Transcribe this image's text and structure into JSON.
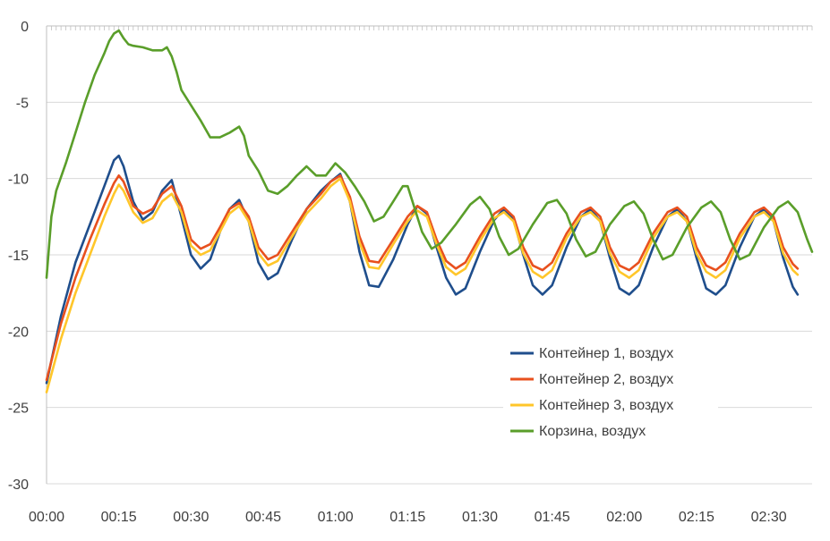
{
  "chart_data": {
    "type": "line",
    "title": "",
    "xlabel": "",
    "ylabel": "",
    "x_ticks": [
      "00:00",
      "00:15",
      "00:30",
      "00:45",
      "01:00",
      "01:15",
      "01:30",
      "01:45",
      "02:00",
      "02:15",
      "02:30"
    ],
    "y_ticks": [
      0,
      -5,
      -10,
      -15,
      -20,
      -25,
      -30
    ],
    "ylim": [
      -30,
      0
    ],
    "xlim_minutes": [
      0,
      159
    ],
    "grid": "horizontal",
    "legend_position": "bottom-right (inside plot)",
    "series": [
      {
        "name": "Контейнер 1, воздух",
        "color": "#1f4e8c",
        "points": [
          [
            0,
            -23.4
          ],
          [
            3,
            -19
          ],
          [
            6,
            -15.5
          ],
          [
            9,
            -13
          ],
          [
            12,
            -10.5
          ],
          [
            14,
            -8.8
          ],
          [
            15,
            -8.5
          ],
          [
            16,
            -9.2
          ],
          [
            18,
            -11.5
          ],
          [
            20,
            -12.7
          ],
          [
            22,
            -12.2
          ],
          [
            24,
            -10.8
          ],
          [
            26,
            -10.1
          ],
          [
            28,
            -12.5
          ],
          [
            30,
            -15
          ],
          [
            32,
            -15.9
          ],
          [
            34,
            -15.3
          ],
          [
            36,
            -13.5
          ],
          [
            38,
            -12
          ],
          [
            40,
            -11.4
          ],
          [
            42,
            -12.8
          ],
          [
            44,
            -15.5
          ],
          [
            46,
            -16.6
          ],
          [
            48,
            -16.2
          ],
          [
            51,
            -14
          ],
          [
            54,
            -12
          ],
          [
            57,
            -10.8
          ],
          [
            59,
            -10.2
          ],
          [
            61,
            -9.7
          ],
          [
            63,
            -11.5
          ],
          [
            65,
            -14.8
          ],
          [
            67,
            -17
          ],
          [
            69,
            -17.1
          ],
          [
            72,
            -15.3
          ],
          [
            75,
            -13
          ],
          [
            77,
            -11.8
          ],
          [
            79,
            -12.3
          ],
          [
            81,
            -14.5
          ],
          [
            83,
            -16.5
          ],
          [
            85,
            -17.6
          ],
          [
            87,
            -17.2
          ],
          [
            90,
            -14.8
          ],
          [
            93,
            -12.7
          ],
          [
            95,
            -12
          ],
          [
            97,
            -12.7
          ],
          [
            99,
            -15
          ],
          [
            101,
            -17
          ],
          [
            103,
            -17.6
          ],
          [
            105,
            -17
          ],
          [
            108,
            -14.5
          ],
          [
            111,
            -12.5
          ],
          [
            113,
            -12
          ],
          [
            115,
            -12.8
          ],
          [
            117,
            -15.2
          ],
          [
            119,
            -17.2
          ],
          [
            121,
            -17.6
          ],
          [
            123,
            -17
          ],
          [
            126,
            -14.5
          ],
          [
            129,
            -12.5
          ],
          [
            131,
            -12
          ],
          [
            133,
            -12.8
          ],
          [
            135,
            -15.2
          ],
          [
            137,
            -17.2
          ],
          [
            139,
            -17.6
          ],
          [
            141,
            -17
          ],
          [
            144,
            -14.5
          ],
          [
            147,
            -12.5
          ],
          [
            149,
            -12
          ],
          [
            151,
            -12.8
          ],
          [
            153,
            -15.2
          ],
          [
            155,
            -17.1
          ],
          [
            156,
            -17.6
          ]
        ]
      },
      {
        "name": "Контейнер 2, воздух",
        "color": "#e8501e",
        "points": [
          [
            0,
            -23.2
          ],
          [
            3,
            -19.5
          ],
          [
            6,
            -16.5
          ],
          [
            9,
            -14
          ],
          [
            12,
            -11.7
          ],
          [
            14,
            -10.3
          ],
          [
            15,
            -9.8
          ],
          [
            16,
            -10.2
          ],
          [
            18,
            -11.8
          ],
          [
            20,
            -12.3
          ],
          [
            22,
            -12
          ],
          [
            24,
            -11
          ],
          [
            26,
            -10.5
          ],
          [
            28,
            -11.8
          ],
          [
            30,
            -14
          ],
          [
            32,
            -14.6
          ],
          [
            34,
            -14.3
          ],
          [
            36,
            -13.2
          ],
          [
            38,
            -12
          ],
          [
            40,
            -11.6
          ],
          [
            42,
            -12.5
          ],
          [
            44,
            -14.5
          ],
          [
            46,
            -15.3
          ],
          [
            48,
            -15
          ],
          [
            51,
            -13.5
          ],
          [
            54,
            -12
          ],
          [
            57,
            -11
          ],
          [
            59,
            -10.2
          ],
          [
            61,
            -9.8
          ],
          [
            63,
            -11.2
          ],
          [
            65,
            -13.8
          ],
          [
            67,
            -15.4
          ],
          [
            69,
            -15.5
          ],
          [
            72,
            -14
          ],
          [
            75,
            -12.5
          ],
          [
            77,
            -11.8
          ],
          [
            79,
            -12.2
          ],
          [
            81,
            -14
          ],
          [
            83,
            -15.4
          ],
          [
            85,
            -15.9
          ],
          [
            87,
            -15.5
          ],
          [
            90,
            -13.8
          ],
          [
            93,
            -12.3
          ],
          [
            95,
            -11.9
          ],
          [
            97,
            -12.5
          ],
          [
            99,
            -14.5
          ],
          [
            101,
            -15.7
          ],
          [
            103,
            -16
          ],
          [
            105,
            -15.5
          ],
          [
            108,
            -13.6
          ],
          [
            111,
            -12.2
          ],
          [
            113,
            -11.9
          ],
          [
            115,
            -12.5
          ],
          [
            117,
            -14.5
          ],
          [
            119,
            -15.7
          ],
          [
            121,
            -16
          ],
          [
            123,
            -15.5
          ],
          [
            126,
            -13.6
          ],
          [
            129,
            -12.2
          ],
          [
            131,
            -11.9
          ],
          [
            133,
            -12.5
          ],
          [
            135,
            -14.5
          ],
          [
            137,
            -15.7
          ],
          [
            139,
            -16
          ],
          [
            141,
            -15.5
          ],
          [
            144,
            -13.6
          ],
          [
            147,
            -12.2
          ],
          [
            149,
            -11.9
          ],
          [
            151,
            -12.5
          ],
          [
            153,
            -14.5
          ],
          [
            155,
            -15.6
          ],
          [
            156,
            -15.9
          ]
        ]
      },
      {
        "name": "Контейнер 3, воздух",
        "color": "#ffc62a",
        "points": [
          [
            0,
            -24
          ],
          [
            3,
            -20.5
          ],
          [
            6,
            -17.5
          ],
          [
            9,
            -15
          ],
          [
            12,
            -12.5
          ],
          [
            14,
            -11
          ],
          [
            15,
            -10.4
          ],
          [
            16,
            -10.8
          ],
          [
            18,
            -12.2
          ],
          [
            20,
            -12.9
          ],
          [
            22,
            -12.6
          ],
          [
            24,
            -11.5
          ],
          [
            26,
            -11
          ],
          [
            28,
            -12.2
          ],
          [
            30,
            -14.4
          ],
          [
            32,
            -15
          ],
          [
            34,
            -14.7
          ],
          [
            36,
            -13.5
          ],
          [
            38,
            -12.3
          ],
          [
            40,
            -11.8
          ],
          [
            42,
            -12.8
          ],
          [
            44,
            -14.9
          ],
          [
            46,
            -15.7
          ],
          [
            48,
            -15.4
          ],
          [
            51,
            -13.8
          ],
          [
            54,
            -12.3
          ],
          [
            57,
            -11.3
          ],
          [
            59,
            -10.5
          ],
          [
            61,
            -10
          ],
          [
            63,
            -11.5
          ],
          [
            65,
            -14.2
          ],
          [
            67,
            -15.8
          ],
          [
            69,
            -15.9
          ],
          [
            72,
            -14.3
          ],
          [
            75,
            -12.8
          ],
          [
            77,
            -12.1
          ],
          [
            79,
            -12.5
          ],
          [
            81,
            -14.3
          ],
          [
            83,
            -15.8
          ],
          [
            85,
            -16.3
          ],
          [
            87,
            -15.9
          ],
          [
            90,
            -14.1
          ],
          [
            93,
            -12.6
          ],
          [
            95,
            -12.2
          ],
          [
            97,
            -12.8
          ],
          [
            99,
            -14.9
          ],
          [
            101,
            -16.1
          ],
          [
            103,
            -16.5
          ],
          [
            105,
            -16
          ],
          [
            108,
            -13.9
          ],
          [
            111,
            -12.5
          ],
          [
            113,
            -12.2
          ],
          [
            115,
            -12.8
          ],
          [
            117,
            -14.9
          ],
          [
            119,
            -16.1
          ],
          [
            121,
            -16.5
          ],
          [
            123,
            -16
          ],
          [
            126,
            -13.9
          ],
          [
            129,
            -12.5
          ],
          [
            131,
            -12.2
          ],
          [
            133,
            -12.8
          ],
          [
            135,
            -14.9
          ],
          [
            137,
            -16.1
          ],
          [
            139,
            -16.5
          ],
          [
            141,
            -16
          ],
          [
            144,
            -13.9
          ],
          [
            147,
            -12.5
          ],
          [
            149,
            -12.2
          ],
          [
            151,
            -12.8
          ],
          [
            153,
            -14.9
          ],
          [
            155,
            -16
          ],
          [
            156,
            -16.3
          ]
        ]
      },
      {
        "name": "Корзина, воздух",
        "color": "#5a9e2a",
        "points": [
          [
            0,
            -16.5
          ],
          [
            1,
            -12.5
          ],
          [
            2,
            -10.8
          ],
          [
            4,
            -9
          ],
          [
            6,
            -7
          ],
          [
            8,
            -5
          ],
          [
            10,
            -3.2
          ],
          [
            12,
            -1.8
          ],
          [
            13,
            -1
          ],
          [
            14,
            -0.5
          ],
          [
            15,
            -0.3
          ],
          [
            16,
            -0.8
          ],
          [
            17,
            -1.2
          ],
          [
            18,
            -1.3
          ],
          [
            20,
            -1.4
          ],
          [
            22,
            -1.6
          ],
          [
            24,
            -1.6
          ],
          [
            25,
            -1.4
          ],
          [
            26,
            -2
          ],
          [
            27,
            -3
          ],
          [
            28,
            -4.2
          ],
          [
            30,
            -5.2
          ],
          [
            32,
            -6.2
          ],
          [
            34,
            -7.3
          ],
          [
            36,
            -7.3
          ],
          [
            38,
            -7
          ],
          [
            40,
            -6.6
          ],
          [
            41,
            -7.2
          ],
          [
            42,
            -8.5
          ],
          [
            44,
            -9.5
          ],
          [
            46,
            -10.8
          ],
          [
            48,
            -11
          ],
          [
            50,
            -10.5
          ],
          [
            52,
            -9.8
          ],
          [
            54,
            -9.2
          ],
          [
            56,
            -9.8
          ],
          [
            58,
            -9.8
          ],
          [
            60,
            -9
          ],
          [
            62,
            -9.6
          ],
          [
            64,
            -10.5
          ],
          [
            66,
            -11.5
          ],
          [
            68,
            -12.8
          ],
          [
            70,
            -12.5
          ],
          [
            72,
            -11.5
          ],
          [
            74,
            -10.5
          ],
          [
            75,
            -10.5
          ],
          [
            76,
            -11.5
          ],
          [
            78,
            -13.5
          ],
          [
            80,
            -14.6
          ],
          [
            82,
            -14.2
          ],
          [
            85,
            -13
          ],
          [
            88,
            -11.7
          ],
          [
            90,
            -11.2
          ],
          [
            92,
            -12
          ],
          [
            94,
            -13.8
          ],
          [
            96,
            -15
          ],
          [
            98,
            -14.6
          ],
          [
            101,
            -13
          ],
          [
            104,
            -11.6
          ],
          [
            106,
            -11.4
          ],
          [
            108,
            -12.3
          ],
          [
            110,
            -14
          ],
          [
            112,
            -15.1
          ],
          [
            114,
            -14.8
          ],
          [
            117,
            -13
          ],
          [
            120,
            -11.8
          ],
          [
            122,
            -11.5
          ],
          [
            124,
            -12.3
          ],
          [
            126,
            -14
          ],
          [
            128,
            -15.3
          ],
          [
            130,
            -15
          ],
          [
            133,
            -13.2
          ],
          [
            136,
            -11.9
          ],
          [
            138,
            -11.5
          ],
          [
            140,
            -12.2
          ],
          [
            142,
            -14
          ],
          [
            144,
            -15.3
          ],
          [
            146,
            -15
          ],
          [
            149,
            -13.2
          ],
          [
            152,
            -11.9
          ],
          [
            154,
            -11.5
          ],
          [
            156,
            -12.2
          ],
          [
            158,
            -14
          ],
          [
            159,
            -14.8
          ]
        ]
      }
    ]
  }
}
